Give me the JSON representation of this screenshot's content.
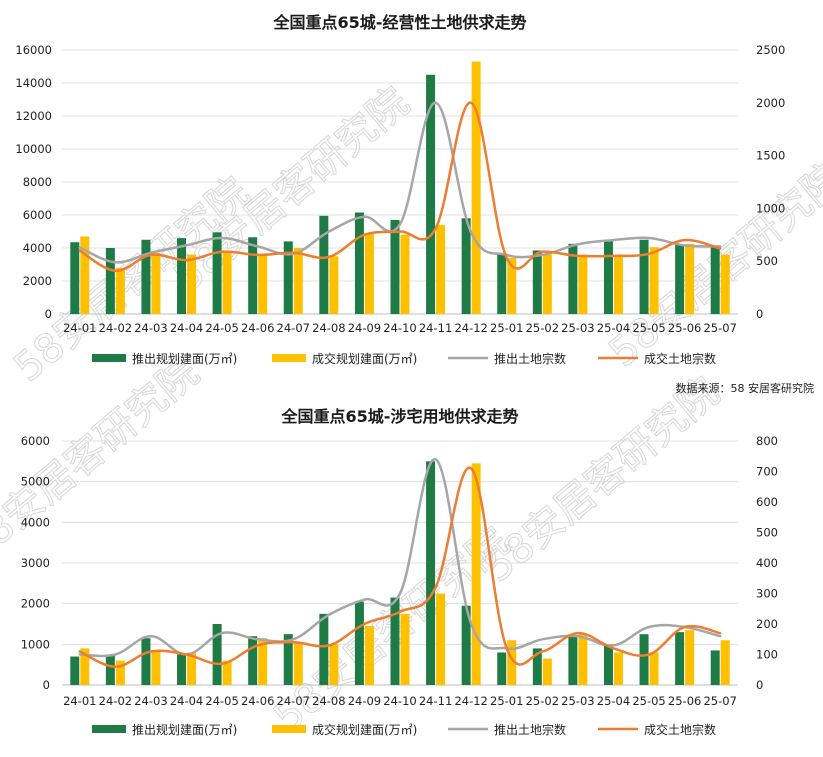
{
  "colors": {
    "bar_supply": "#1e7b45",
    "bar_deal": "#ffc000",
    "line_supply": "#a6a6a6",
    "line_deal": "#ed7d31"
  },
  "source_note": "数据来源：58 安居客研究院",
  "watermark_text": "58安居客研究院",
  "chart_data": [
    {
      "type": "bar",
      "title": "全国重点65城-经营性土地供求走势",
      "categories": [
        "24-01",
        "24-02",
        "24-03",
        "24-04",
        "24-05",
        "24-06",
        "24-07",
        "24-08",
        "24-09",
        "24-10",
        "24-11",
        "24-12",
        "25-01",
        "25-02",
        "25-03",
        "25-04",
        "25-05",
        "25-06",
        "25-07"
      ],
      "ylim": [
        0,
        16000
      ],
      "yticks": [
        0,
        2000,
        4000,
        6000,
        8000,
        10000,
        12000,
        14000,
        16000
      ],
      "y2lim": [
        0,
        2500
      ],
      "y2ticks": [
        0,
        500,
        1000,
        1500,
        2000,
        2500
      ],
      "series": [
        {
          "name": "推出规划建面(万㎡)",
          "kind": "bar",
          "axis": "left",
          "values": [
            4350,
            4000,
            4500,
            4600,
            4950,
            4650,
            4400,
            5950,
            6150,
            5700,
            14500,
            5800,
            3700,
            3850,
            4250,
            4400,
            4500,
            4200,
            4100
          ]
        },
        {
          "name": "成交规划建面(万㎡)",
          "kind": "bar",
          "axis": "left",
          "values": [
            4700,
            2800,
            3700,
            3600,
            3700,
            3600,
            4000,
            3500,
            4850,
            4800,
            5400,
            15300,
            3400,
            3650,
            3600,
            3450,
            4050,
            4250,
            3600
          ]
        },
        {
          "name": "推出土地宗数",
          "kind": "line",
          "axis": "right",
          "values": [
            630,
            490,
            580,
            650,
            720,
            640,
            570,
            780,
            920,
            850,
            2000,
            770,
            560,
            560,
            660,
            700,
            720,
            650,
            640
          ]
        },
        {
          "name": "成交土地宗数",
          "kind": "line",
          "axis": "right",
          "values": [
            600,
            410,
            560,
            510,
            590,
            560,
            580,
            540,
            750,
            780,
            810,
            2000,
            530,
            590,
            550,
            550,
            570,
            700,
            620
          ]
        }
      ],
      "legend_position": "bottom",
      "grid": true
    },
    {
      "type": "bar",
      "title": "全国重点65城-涉宅用地供求走势",
      "categories": [
        "24-01",
        "24-02",
        "24-03",
        "24-04",
        "24-05",
        "24-06",
        "24-07",
        "24-08",
        "24-09",
        "24-10",
        "24-11",
        "24-12",
        "25-01",
        "25-02",
        "25-03",
        "25-04",
        "25-05",
        "25-06",
        "25-07"
      ],
      "ylim": [
        0,
        6000
      ],
      "yticks": [
        0,
        1000,
        2000,
        3000,
        4000,
        5000,
        6000
      ],
      "y2lim": [
        0,
        800
      ],
      "y2ticks": [
        0,
        100,
        200,
        300,
        400,
        500,
        600,
        700,
        800
      ],
      "series": [
        {
          "name": "推出规划建面(万㎡)",
          "kind": "bar",
          "axis": "left",
          "values": [
            700,
            750,
            1150,
            750,
            1500,
            1200,
            1250,
            1750,
            2050,
            2150,
            5500,
            1950,
            800,
            900,
            1200,
            1000,
            1250,
            1300,
            850
          ]
        },
        {
          "name": "成交规划建面(万㎡)",
          "kind": "bar",
          "axis": "left",
          "values": [
            900,
            600,
            850,
            800,
            600,
            1150,
            1050,
            1000,
            1450,
            1750,
            2250,
            5450,
            1100,
            650,
            1250,
            800,
            800,
            1350,
            1100
          ]
        },
        {
          "name": "推出土地宗数",
          "kind": "line",
          "axis": "right",
          "values": [
            100,
            100,
            160,
            100,
            170,
            150,
            150,
            230,
            280,
            300,
            740,
            200,
            120,
            150,
            160,
            130,
            190,
            190,
            160
          ]
        },
        {
          "name": "成交土地宗数",
          "kind": "line",
          "axis": "right",
          "values": [
            110,
            60,
            110,
            100,
            70,
            130,
            140,
            130,
            200,
            240,
            320,
            710,
            120,
            110,
            170,
            120,
            100,
            190,
            170
          ]
        }
      ],
      "legend_position": "bottom",
      "grid": true
    }
  ]
}
